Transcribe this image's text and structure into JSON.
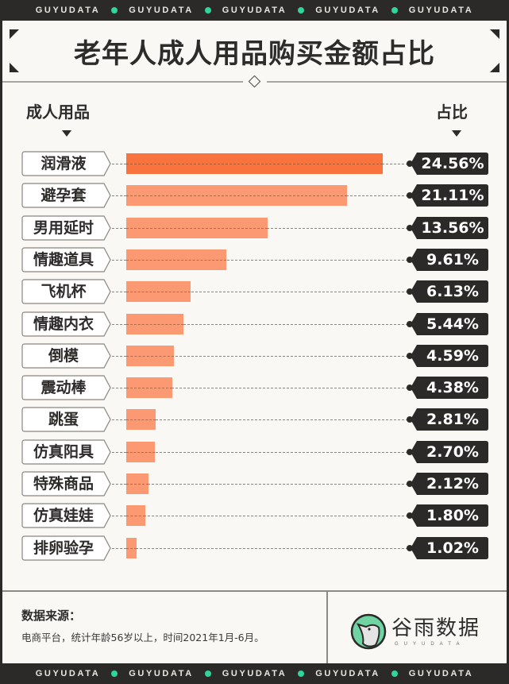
{
  "banner": {
    "word": "GUYUDATA",
    "repeat": 5,
    "dot_color": "#2fd59a"
  },
  "title": "老年人成人用品购买金额占比",
  "columns": {
    "left_header": "成人用品",
    "right_header": "占比"
  },
  "rows": [
    {
      "label": "润滑液",
      "value": "24.56%"
    },
    {
      "label": "避孕套",
      "value": "21.11%"
    },
    {
      "label": "男用延时",
      "value": "13.56%"
    },
    {
      "label": "情趣道具",
      "value": "9.61%"
    },
    {
      "label": "飞机杯",
      "value": "6.13%"
    },
    {
      "label": "情趣内衣",
      "value": "5.44%"
    },
    {
      "label": "倒模",
      "value": "4.59%"
    },
    {
      "label": "震动棒",
      "value": "4.38%"
    },
    {
      "label": "跳蛋",
      "value": "2.81%"
    },
    {
      "label": "仿真阳具",
      "value": "2.70%"
    },
    {
      "label": "特殊商品",
      "value": "2.12%"
    },
    {
      "label": "仿真娃娃",
      "value": "1.80%"
    },
    {
      "label": "排卵验孕",
      "value": "1.02%"
    }
  ],
  "footer": {
    "source_title": "数据来源：",
    "source_text": "电商平台，统计年龄56岁以上，时间2021年1月-6月。",
    "logo_text": "谷雨数据",
    "logo_sub": "GUYUDATA"
  },
  "colors": {
    "top_bar": "#f8733d",
    "bar": "#fb9a72",
    "tag_dark": "#2b2a29",
    "background": "#faf8f5"
  },
  "chart_data": {
    "type": "bar",
    "orientation": "horizontal",
    "title": "老年人成人用品购买金额占比",
    "xlabel": "占比",
    "ylabel": "成人用品",
    "categories": [
      "润滑液",
      "避孕套",
      "男用延时",
      "情趣道具",
      "飞机杯",
      "情趣内衣",
      "倒模",
      "震动棒",
      "跳蛋",
      "仿真阳具",
      "特殊商品",
      "仿真娃娃",
      "排卵验孕"
    ],
    "values": [
      24.56,
      21.11,
      13.56,
      9.61,
      6.13,
      5.44,
      4.59,
      4.38,
      2.81,
      2.7,
      2.12,
      1.8,
      1.02
    ],
    "unit": "%",
    "grid": false,
    "legend": null,
    "source": "电商平台，统计年龄56岁以上，时间2021年1月-6月。"
  }
}
